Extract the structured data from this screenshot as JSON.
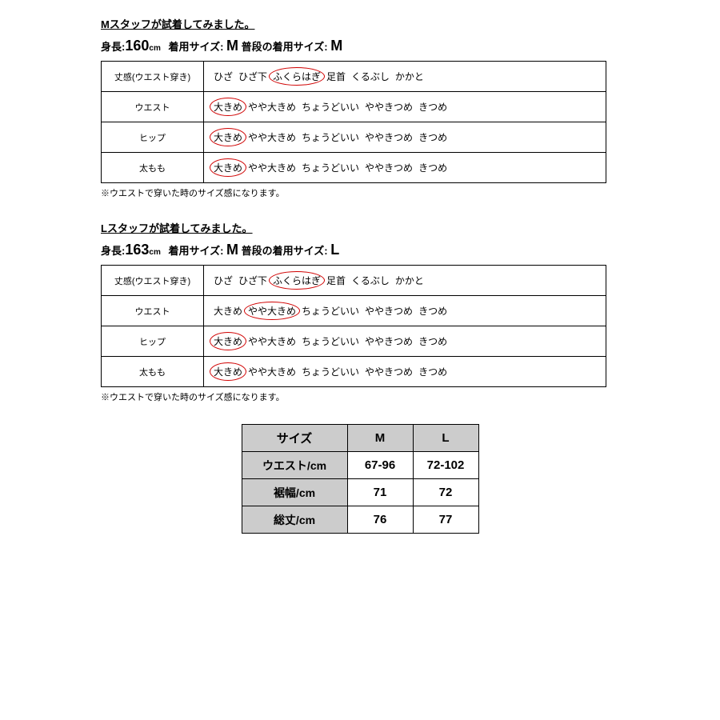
{
  "sections": [
    {
      "title": "Mスタッフが試着してみました。",
      "height_label": "身長:",
      "height": "160",
      "height_unit": "cm",
      "worn_label": "着用サイズ:",
      "worn": "M",
      "usual_label": "普段の着用サイズ:",
      "usual": "M",
      "footnote": "※ウエストで穿いた時のサイズ感になります。",
      "rows": [
        {
          "label": "丈感(ウエスト穿き)",
          "options": [
            "ひざ",
            "ひざ下",
            "ふくらはぎ",
            "足首",
            "くるぶし",
            "かかと"
          ],
          "circled": 2
        },
        {
          "label": "ウエスト",
          "options": [
            "大きめ",
            "やや大きめ",
            "ちょうどいい",
            "ややきつめ",
            "きつめ"
          ],
          "circled": 0
        },
        {
          "label": "ヒップ",
          "options": [
            "大きめ",
            "やや大きめ",
            "ちょうどいい",
            "ややきつめ",
            "きつめ"
          ],
          "circled": 0
        },
        {
          "label": "太もも",
          "options": [
            "大きめ",
            "やや大きめ",
            "ちょうどいい",
            "ややきつめ",
            "きつめ"
          ],
          "circled": 0
        }
      ]
    },
    {
      "title": "Lスタッフが試着してみました。",
      "height_label": "身長:",
      "height": "163",
      "height_unit": "cm",
      "worn_label": "着用サイズ:",
      "worn": "M",
      "usual_label": "普段の着用サイズ:",
      "usual": "L",
      "footnote": "※ウエストで穿いた時のサイズ感になります。",
      "rows": [
        {
          "label": "丈感(ウエスト穿き)",
          "options": [
            "ひざ",
            "ひざ下",
            "ふくらはぎ",
            "足首",
            "くるぶし",
            "かかと"
          ],
          "circled": 2
        },
        {
          "label": "ウエスト",
          "options": [
            "大きめ",
            "やや大きめ",
            "ちょうどいい",
            "ややきつめ",
            "きつめ"
          ],
          "circled": 1
        },
        {
          "label": "ヒップ",
          "options": [
            "大きめ",
            "やや大きめ",
            "ちょうどいい",
            "ややきつめ",
            "きつめ"
          ],
          "circled": 0
        },
        {
          "label": "太もも",
          "options": [
            "大きめ",
            "やや大きめ",
            "ちょうどいい",
            "ややきつめ",
            "きつめ"
          ],
          "circled": 0
        }
      ]
    }
  ],
  "size_chart": {
    "header": [
      "サイズ",
      "M",
      "L"
    ],
    "rows": [
      {
        "label": "ウエスト/cm",
        "vals": [
          "67-96",
          "72-102"
        ]
      },
      {
        "label": "裾幅/cm",
        "vals": [
          "71",
          "72"
        ]
      },
      {
        "label": "総丈/cm",
        "vals": [
          "76",
          "77"
        ]
      }
    ]
  },
  "colors": {
    "circle": "#d00000",
    "header_bg": "#cccccc",
    "border": "#000000",
    "text": "#000000",
    "bg": "#ffffff"
  }
}
